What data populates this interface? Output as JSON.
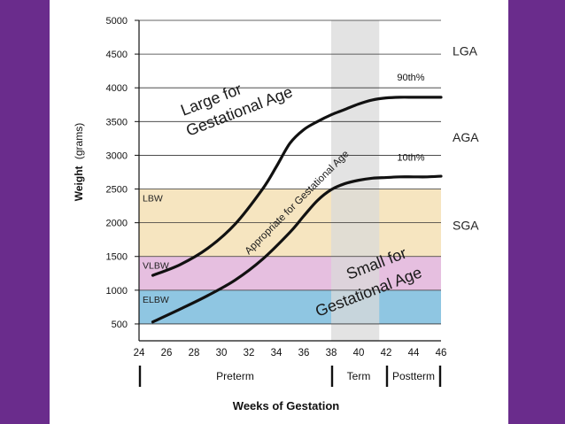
{
  "chart_data": {
    "type": "line",
    "xlabel": "Weeks of Gestation",
    "ylabel": "Weight",
    "ylabel_unit": "(grams)",
    "xlim": [
      24,
      46
    ],
    "ylim": [
      250,
      5000
    ],
    "x_ticks": [
      24,
      26,
      28,
      30,
      32,
      34,
      36,
      38,
      40,
      42,
      44,
      46
    ],
    "x_tick_labels": [
      "24",
      "26",
      "28",
      "30",
      "32",
      "34",
      "36",
      "38",
      "40",
      "42",
      "44",
      "46"
    ],
    "y_ticks": [
      500,
      1000,
      1500,
      2000,
      2500,
      3000,
      3500,
      4000,
      4500,
      5000
    ],
    "y_tick_labels": [
      "500",
      "1000",
      "1500",
      "2000",
      "2500",
      "3000",
      "3500",
      "4000",
      "4500",
      "5000"
    ],
    "series": [
      {
        "name": "90th%",
        "x": [
          25,
          27,
          29,
          31,
          33,
          34,
          35,
          36,
          37,
          38,
          39,
          40,
          41,
          42,
          43,
          44,
          45,
          46
        ],
        "y": [
          1220,
          1380,
          1620,
          1980,
          2500,
          2830,
          3180,
          3380,
          3500,
          3600,
          3680,
          3760,
          3820,
          3850,
          3860,
          3860,
          3860,
          3860
        ]
      },
      {
        "name": "10th%",
        "x": [
          25,
          27,
          29,
          31,
          33,
          35,
          36,
          37,
          38,
          39,
          40,
          41,
          42,
          43,
          44,
          45,
          46
        ],
        "y": [
          530,
          720,
          920,
          1150,
          1460,
          1860,
          2100,
          2330,
          2490,
          2580,
          2630,
          2660,
          2670,
          2680,
          2680,
          2680,
          2690
        ]
      }
    ],
    "bands": [
      {
        "label": "LBW",
        "from": 1500,
        "to": 2500,
        "color": "#f6e5c0"
      },
      {
        "label": "VLBW",
        "from": 1000,
        "to": 1500,
        "color": "#e6bfe0"
      },
      {
        "label": "ELBW",
        "from": 500,
        "to": 1000,
        "color": "#8fc6e2"
      }
    ],
    "term_shade": {
      "from_week": 38,
      "to_week": 41.5,
      "color": "#d9d9d9"
    },
    "right_labels": [
      {
        "label": "LGA",
        "weight": 4550
      },
      {
        "label": "AGA",
        "weight": 3270
      },
      {
        "label": "SGA",
        "weight": 1960
      }
    ],
    "curve_labels": [
      {
        "label": "90th%",
        "week": 42.8,
        "weight": 4110
      },
      {
        "label": "10th%",
        "week": 42.8,
        "weight": 2920
      }
    ],
    "annotations": {
      "lga_line1": "Large for",
      "lga_line2": "Gestational Age",
      "aga": "Appropriate for Gestational Age",
      "sga_line1": "Small for",
      "sga_line2": "Gestational Age"
    },
    "periods": [
      {
        "label": "Preterm",
        "from_week": 24,
        "to_week": 38
      },
      {
        "label": "Term",
        "from_week": 38,
        "to_week": 42
      },
      {
        "label": "Postterm",
        "from_week": 42,
        "to_week": 46
      }
    ]
  }
}
